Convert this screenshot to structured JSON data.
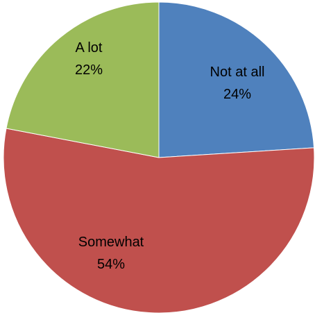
{
  "chart_data": {
    "type": "pie",
    "title": "",
    "start_angle_deg": 0,
    "direction": "clockwise",
    "slices": [
      {
        "label": "Not at all",
        "value": 24,
        "value_label": "24%",
        "color": "#4F81BD"
      },
      {
        "label": "Somewhat",
        "value": 54,
        "value_label": "54%",
        "color": "#C0504D"
      },
      {
        "label": "A lot",
        "value": 22,
        "value_label": "22%",
        "color": "#9BBB59"
      }
    ]
  }
}
